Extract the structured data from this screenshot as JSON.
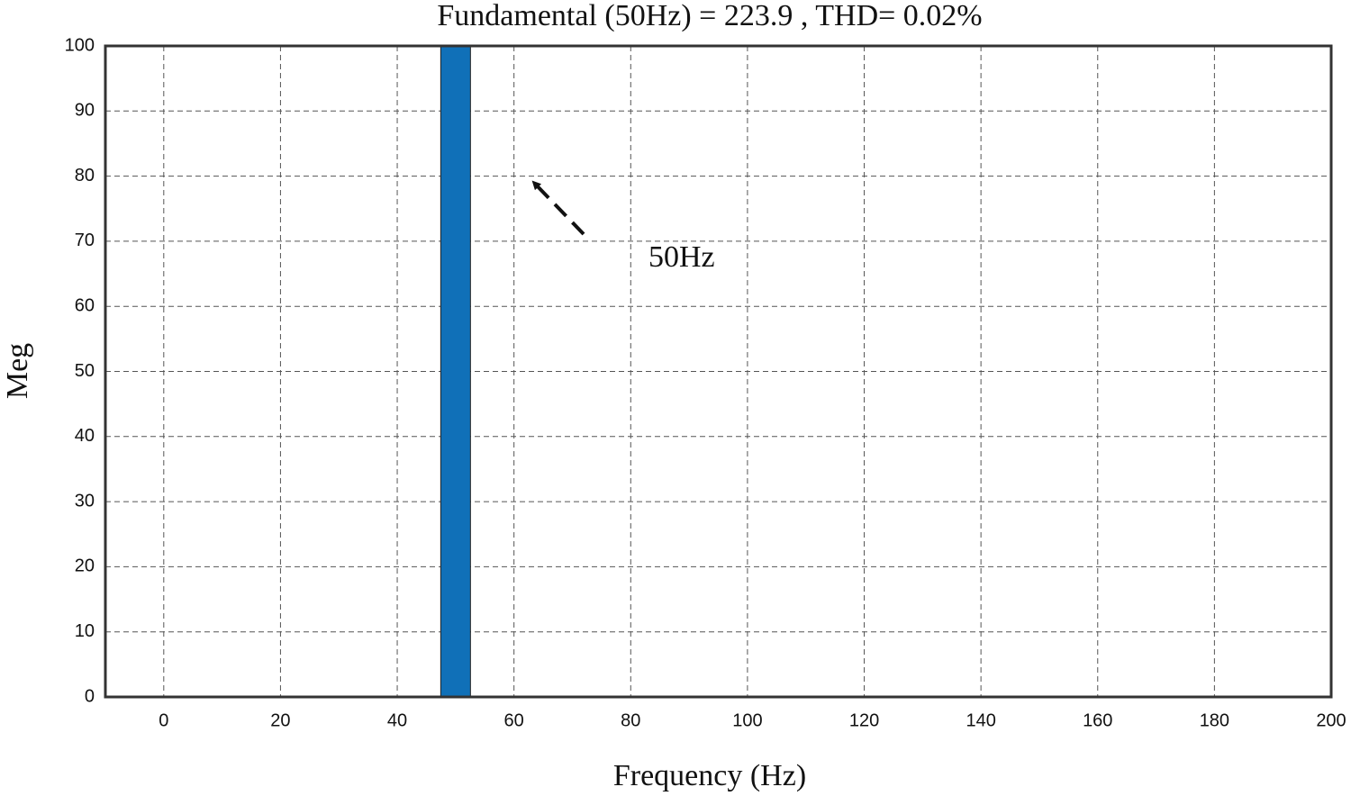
{
  "chart_data": {
    "type": "bar",
    "title": "Fundamental (50Hz) = 223.9 , THD= 0.02%",
    "xlabel": "Frequency (Hz)",
    "ylabel": "Meg",
    "x": [
      50
    ],
    "values": [
      100
    ],
    "color": "#1070b8",
    "xlim": [
      -10,
      200
    ],
    "xticks": [
      0,
      20,
      40,
      60,
      80,
      100,
      120,
      140,
      160,
      180,
      200
    ],
    "ylim": [
      0,
      100
    ],
    "yticks": [
      0,
      10,
      20,
      30,
      40,
      50,
      60,
      70,
      80,
      90,
      100
    ],
    "grid": true,
    "annotations": [
      {
        "text": "50Hz"
      }
    ]
  }
}
